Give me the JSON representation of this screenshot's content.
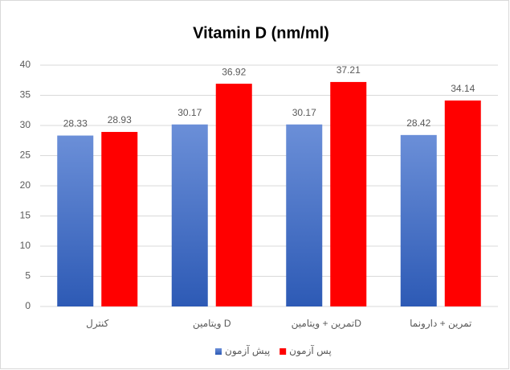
{
  "chart_data": {
    "type": "bar",
    "title": "Vitamin D (nm/ml)",
    "categories": [
      "کنترل",
      "ویتامین D",
      "تمرین + ویتامینD",
      "تمرین + دارونما"
    ],
    "series": [
      {
        "name": "پیش آزمون",
        "color": "#3f6cc4",
        "values": [
          28.33,
          30.17,
          30.17,
          28.42
        ]
      },
      {
        "name": "پس آزمون",
        "color": "#ff0000",
        "values": [
          28.93,
          36.92,
          37.21,
          34.14
        ]
      }
    ],
    "ylim": [
      0,
      40
    ],
    "yticks": [
      0,
      5,
      10,
      15,
      20,
      25,
      30,
      35,
      40
    ],
    "grid": true,
    "legend": "bottom"
  }
}
